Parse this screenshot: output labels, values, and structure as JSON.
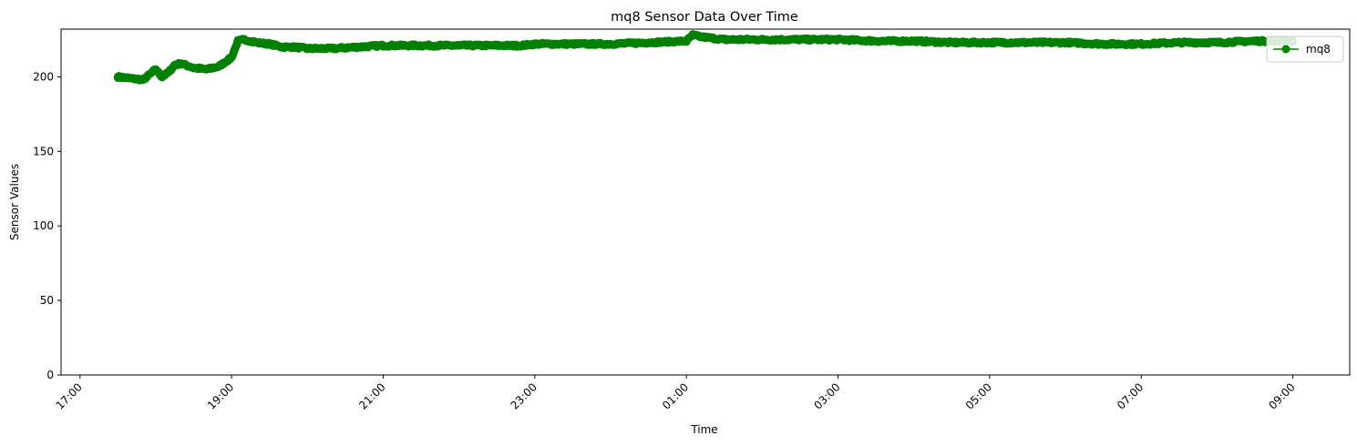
{
  "chart_data": {
    "type": "line",
    "title": "mq8 Sensor Data Over Time",
    "xlabel": "Time",
    "ylabel": "Sensor Values",
    "ylim": [
      0,
      232
    ],
    "xlim": [
      "16:45",
      "09:45"
    ],
    "x_ticks": [
      "17:00",
      "19:00",
      "21:00",
      "23:00",
      "01:00",
      "03:00",
      "05:00",
      "07:00",
      "09:00"
    ],
    "y_ticks": [
      0,
      50,
      100,
      150,
      200
    ],
    "grid": false,
    "legend_position": "top-right",
    "series": [
      {
        "name": "mq8",
        "color": "#008000",
        "marker": "circle",
        "x": [
          "17:30",
          "17:40",
          "17:50",
          "18:00",
          "18:05",
          "18:10",
          "18:15",
          "18:20",
          "18:30",
          "18:40",
          "18:50",
          "18:55",
          "19:00",
          "19:05",
          "19:10",
          "19:20",
          "19:30",
          "19:40",
          "19:50",
          "20:00",
          "20:20",
          "20:40",
          "21:00",
          "21:30",
          "22:00",
          "22:30",
          "22:50",
          "23:00",
          "23:30",
          "00:00",
          "00:30",
          "01:00",
          "01:05",
          "01:10",
          "01:30",
          "02:00",
          "02:30",
          "03:00",
          "03:30",
          "04:00",
          "04:30",
          "05:00",
          "05:30",
          "06:00",
          "06:30",
          "07:00",
          "07:30",
          "08:00",
          "08:30",
          "09:00"
        ],
        "y": [
          200,
          199,
          198,
          205,
          200,
          203,
          208,
          209,
          206,
          205,
          207,
          210,
          213,
          224,
          225,
          223,
          222,
          220,
          220,
          219,
          219,
          220,
          221,
          221,
          221,
          221,
          221,
          222,
          222,
          222,
          223,
          224,
          228,
          227,
          225,
          225,
          225,
          225,
          224,
          224,
          223,
          223,
          223,
          223,
          222,
          222,
          223,
          223,
          224,
          224
        ]
      }
    ]
  }
}
